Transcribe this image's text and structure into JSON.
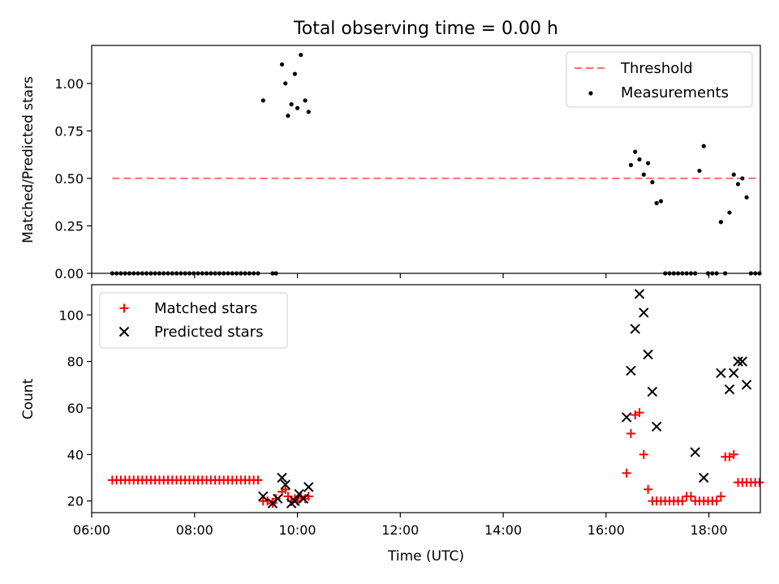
{
  "chart_data": [
    {
      "type": "scatter",
      "title": "Total observing time = 0.00 h",
      "xlabel": "",
      "ylabel": "Matched/Predicted stars",
      "xlim": [
        "06:00",
        "19:00"
      ],
      "ylim": [
        0,
        1.2
      ],
      "yticks": [
        "0.00",
        "0.25",
        "0.50",
        "0.75",
        "1.00"
      ],
      "grid": false,
      "legend_position": "top-right",
      "threshold": {
        "name": "Threshold",
        "color": "#ff7070",
        "style": "dashed",
        "value": 0.5,
        "x_range": [
          "06:24",
          "19:00"
        ]
      },
      "series": [
        {
          "name": "Measurements",
          "marker": "dot",
          "color": "#000000",
          "x": [
            "06:24",
            "06:29",
            "06:34",
            "06:39",
            "06:44",
            "06:49",
            "06:54",
            "06:59",
            "07:04",
            "07:09",
            "07:14",
            "07:19",
            "07:24",
            "07:29",
            "07:34",
            "07:39",
            "07:44",
            "07:49",
            "07:54",
            "07:59",
            "08:04",
            "08:09",
            "08:14",
            "08:19",
            "08:24",
            "08:29",
            "08:34",
            "08:39",
            "08:44",
            "08:49",
            "08:54",
            "08:59",
            "09:04",
            "09:09",
            "09:14",
            "09:20",
            "09:31",
            "09:35",
            "09:42",
            "09:46",
            "09:49",
            "09:53",
            "09:57",
            "10:00",
            "10:04",
            "10:09",
            "10:13",
            "16:29",
            "16:34",
            "16:39",
            "16:44",
            "16:49",
            "16:54",
            "16:59",
            "17:04",
            "17:09",
            "17:14",
            "17:19",
            "17:24",
            "17:29",
            "17:34",
            "17:39",
            "17:44",
            "17:49",
            "17:54",
            "17:59",
            "18:04",
            "18:09",
            "18:14",
            "18:19",
            "18:24",
            "18:29",
            "18:34",
            "18:39",
            "18:44",
            "18:49",
            "18:54",
            "18:59"
          ],
          "y": [
            0,
            0,
            0,
            0,
            0,
            0,
            0,
            0,
            0,
            0,
            0,
            0,
            0,
            0,
            0,
            0,
            0,
            0,
            0,
            0,
            0,
            0,
            0,
            0,
            0,
            0,
            0,
            0,
            0,
            0,
            0,
            0,
            0,
            0,
            0,
            0.91,
            0,
            0,
            1.1,
            1.0,
            0.83,
            0.89,
            1.05,
            0.87,
            1.15,
            0.91,
            0.85,
            0.57,
            0.64,
            0.6,
            0.52,
            0.58,
            0.48,
            0.37,
            0.38,
            0,
            0,
            0,
            0,
            0,
            0,
            0,
            0,
            0.54,
            0.67,
            0,
            0,
            0,
            0.27,
            0,
            0.32,
            0.52,
            0.47,
            0.5,
            0.4,
            0,
            0,
            0
          ]
        }
      ]
    },
    {
      "type": "scatter",
      "title": "",
      "xlabel": "Time (UTC)",
      "ylabel": "Count",
      "xlim": [
        "06:00",
        "19:00"
      ],
      "ylim": [
        15,
        113
      ],
      "xticks": [
        "06:00",
        "08:00",
        "10:00",
        "12:00",
        "14:00",
        "16:00",
        "18:00"
      ],
      "yticks": [
        "20",
        "40",
        "60",
        "80",
        "100"
      ],
      "grid": false,
      "legend_position": "top-left",
      "series": [
        {
          "name": "Matched stars",
          "marker": "plus",
          "color": "#ff0000",
          "x": [
            "06:24",
            "06:29",
            "06:34",
            "06:39",
            "06:44",
            "06:49",
            "06:54",
            "06:59",
            "07:04",
            "07:09",
            "07:14",
            "07:19",
            "07:24",
            "07:29",
            "07:34",
            "07:39",
            "07:44",
            "07:49",
            "07:54",
            "07:59",
            "08:04",
            "08:09",
            "08:14",
            "08:19",
            "08:24",
            "08:29",
            "08:34",
            "08:39",
            "08:44",
            "08:49",
            "08:54",
            "08:59",
            "09:04",
            "09:09",
            "09:14",
            "09:20",
            "09:25",
            "09:31",
            "09:35",
            "09:42",
            "09:46",
            "09:49",
            "09:53",
            "09:57",
            "10:00",
            "10:04",
            "10:09",
            "10:13",
            "16:24",
            "16:29",
            "16:34",
            "16:39",
            "16:44",
            "16:49",
            "16:54",
            "16:59",
            "17:04",
            "17:09",
            "17:14",
            "17:19",
            "17:24",
            "17:29",
            "17:34",
            "17:39",
            "17:44",
            "17:49",
            "17:54",
            "17:59",
            "18:04",
            "18:09",
            "18:14",
            "18:19",
            "18:24",
            "18:29",
            "18:34",
            "18:39",
            "18:44",
            "18:49",
            "18:54",
            "18:59"
          ],
          "y": [
            29,
            29,
            29,
            29,
            29,
            29,
            29,
            29,
            29,
            29,
            29,
            29,
            29,
            29,
            29,
            29,
            29,
            29,
            29,
            29,
            29,
            29,
            29,
            29,
            29,
            29,
            29,
            29,
            29,
            29,
            29,
            29,
            29,
            29,
            29,
            20,
            20,
            19,
            21,
            24,
            25,
            22,
            20,
            21,
            20,
            22,
            21,
            22,
            32,
            49,
            57,
            58,
            40,
            25,
            20,
            20,
            20,
            20,
            20,
            20,
            20,
            20,
            22,
            22,
            20,
            20,
            20,
            20,
            20,
            20,
            22,
            39,
            39,
            40,
            28,
            28,
            28,
            28,
            28,
            28
          ]
        },
        {
          "name": "Predicted stars",
          "marker": "x",
          "color": "#000000",
          "x": [
            "09:20",
            "09:31",
            "09:37",
            "09:42",
            "09:46",
            "09:53",
            "09:57",
            "10:02",
            "10:07",
            "10:13",
            "16:24",
            "16:29",
            "16:34",
            "16:39",
            "16:44",
            "16:49",
            "16:54",
            "16:59",
            "17:44",
            "17:54",
            "18:14",
            "18:24",
            "18:29",
            "18:34",
            "18:39",
            "18:44"
          ],
          "y": [
            22,
            19,
            21,
            30,
            27,
            19,
            20,
            23,
            21,
            26,
            56,
            76,
            94,
            109,
            101,
            83,
            67,
            52,
            41,
            30,
            75,
            68,
            75,
            80,
            80,
            70
          ]
        }
      ]
    }
  ]
}
